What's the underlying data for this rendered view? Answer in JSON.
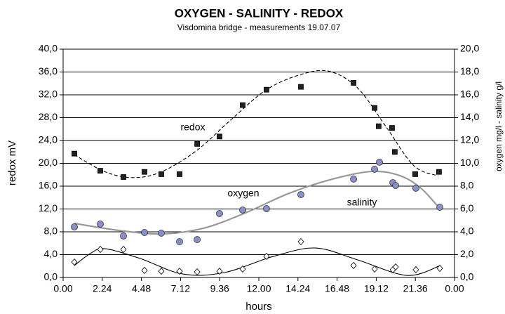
{
  "chart_data": {
    "type": "scatter",
    "title": "OXYGEN - SALINITY - REDOX",
    "subtitle": "Visdomina bridge - measurements 19.07.07",
    "x_label": "hours",
    "y_label": "redox  mV",
    "y2_label": "oxygen  mg/l - salinity  g/l",
    "xlim": [
      0,
      24
    ],
    "xticks": [
      {
        "value": 0,
        "label": "0.00"
      },
      {
        "value": 2.4,
        "label": "2.24"
      },
      {
        "value": 4.8,
        "label": "4.48"
      },
      {
        "value": 7.2,
        "label": "7.12"
      },
      {
        "value": 9.6,
        "label": "9.36"
      },
      {
        "value": 12,
        "label": "12.00"
      },
      {
        "value": 14.4,
        "label": "14.24"
      },
      {
        "value": 16.8,
        "label": "16.48"
      },
      {
        "value": 19.2,
        "label": "19.12"
      },
      {
        "value": 21.6,
        "label": "21.36"
      },
      {
        "value": 24,
        "label": "0.00"
      }
    ],
    "ylim": [
      0,
      40
    ],
    "yticks": [
      {
        "value": 0,
        "label": "0,0"
      },
      {
        "value": 4,
        "label": "4,0"
      },
      {
        "value": 8,
        "label": "8,0"
      },
      {
        "value": 12,
        "label": "12,0"
      },
      {
        "value": 16,
        "label": "16,0"
      },
      {
        "value": 20,
        "label": "20,0"
      },
      {
        "value": 24,
        "label": "24,0"
      },
      {
        "value": 28,
        "label": "28,0"
      },
      {
        "value": 32,
        "label": "32,0"
      },
      {
        "value": 36,
        "label": "36,0"
      },
      {
        "value": 40,
        "label": "40,0"
      }
    ],
    "y2lim": [
      0,
      20
    ],
    "y2ticks": [
      {
        "value": 0,
        "label": "0,0"
      },
      {
        "value": 2,
        "label": "2,0"
      },
      {
        "value": 4,
        "label": "4,0"
      },
      {
        "value": 6,
        "label": "6,0"
      },
      {
        "value": 8,
        "label": "8,0"
      },
      {
        "value": 10,
        "label": "10,0"
      },
      {
        "value": 12,
        "label": "12,0"
      },
      {
        "value": 14,
        "label": "14,0"
      },
      {
        "value": 16,
        "label": "16,0"
      },
      {
        "value": 18,
        "label": "18,0"
      },
      {
        "value": 20,
        "label": "20,0"
      }
    ],
    "grid": true,
    "series": [
      {
        "name": "redox",
        "axis": "y",
        "marker": "square",
        "color": "#222222",
        "x": [
          0.69,
          2.28,
          3.7,
          4.99,
          6.02,
          7.14,
          8.22,
          9.59,
          11.01,
          12.47,
          14.58,
          17.81,
          19.1,
          19.35,
          20.17,
          20.34,
          21.59,
          23.05
        ],
        "values": [
          21.7,
          18.7,
          17.6,
          18.5,
          18.1,
          18.1,
          23.4,
          24.7,
          30.2,
          32.9,
          33.4,
          34.1,
          29.7,
          26.5,
          26.2,
          22.0,
          18.1,
          18.5
        ],
        "trend": {
          "color": "#000000",
          "dashed": true,
          "x": [
            0.69,
            2.58,
            4.3,
            6.02,
            8.17,
            10.32,
            12.47,
            14.62,
            16.34,
            18.06,
            19.78,
            21.5,
            23.0
          ],
          "values": [
            21.5,
            18.5,
            17.5,
            18.5,
            22.2,
            27.7,
            32.9,
            35.6,
            36.1,
            33.2,
            26.5,
            19.6,
            17.8
          ]
        }
      },
      {
        "name": "oxygen",
        "axis": "y2",
        "marker": "circle",
        "color": "#8c8fcc",
        "x": [
          0.69,
          2.28,
          3.7,
          4.99,
          6.02,
          7.14,
          8.22,
          9.59,
          11.01,
          12.47,
          14.58,
          17.81,
          19.1,
          19.4,
          20.22,
          20.39,
          21.63,
          23.1
        ],
        "values": [
          4.43,
          4.68,
          3.63,
          3.94,
          3.88,
          3.14,
          3.32,
          5.6,
          5.91,
          6.03,
          7.26,
          8.62,
          9.48,
          10.1,
          8.31,
          8.06,
          7.82,
          6.15
        ],
        "trend": {
          "color": "#999999",
          "dashed": false,
          "x": [
            0.69,
            3.44,
            6.02,
            8.6,
            11.18,
            13.76,
            16.34,
            18.92,
            20.65,
            21.94,
            23.14
          ],
          "values": [
            4.74,
            4.12,
            3.82,
            4.31,
            5.66,
            7.32,
            8.55,
            9.29,
            8.92,
            7.82,
            5.97
          ]
        }
      },
      {
        "name": "salinity",
        "axis": "y2",
        "marker": "diamond",
        "color": "#ffffff",
        "x": [
          0.69,
          2.28,
          3.7,
          4.99,
          6.02,
          7.14,
          8.22,
          9.59,
          11.01,
          12.47,
          14.58,
          17.81,
          19.1,
          20.22,
          20.39,
          21.63,
          23.1
        ],
        "values": [
          1.35,
          2.46,
          2.46,
          0.62,
          0.55,
          0.55,
          0.49,
          0.55,
          0.74,
          1.85,
          3.14,
          1.05,
          0.74,
          0.68,
          0.92,
          0.68,
          0.8
        ],
        "trend": {
          "color": "#000000",
          "dashed": false,
          "x": [
            0.69,
            1.72,
            2.58,
            4.73,
            7.31,
            9.89,
            12.9,
            15.48,
            18.06,
            21.08,
            23.14
          ],
          "values": [
            1.05,
            2.15,
            2.52,
            1.66,
            0.31,
            0.43,
            1.85,
            2.58,
            1.54,
            0.18,
            1.05
          ]
        }
      }
    ]
  }
}
